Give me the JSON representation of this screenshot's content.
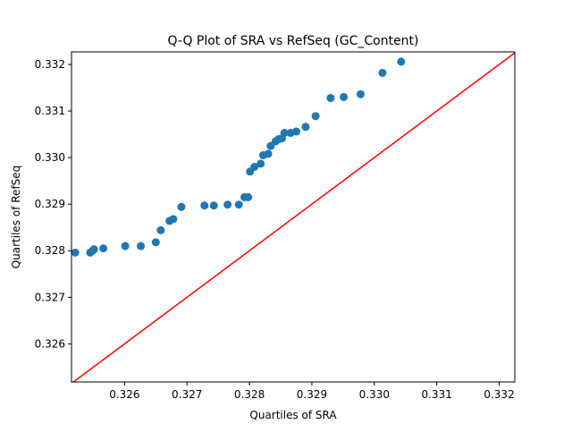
{
  "chart_data": {
    "type": "scatter",
    "title": "Q-Q Plot of SRA vs RefSeq (GC_Content)",
    "xlabel": "Quartiles of SRA",
    "ylabel": "Quartiles of RefSeq",
    "xlim": [
      0.32515,
      0.33225
    ],
    "ylim": [
      0.32518,
      0.33227
    ],
    "xticks": [
      {
        "value": 0.326,
        "label": "0.326"
      },
      {
        "value": 0.327,
        "label": "0.327"
      },
      {
        "value": 0.328,
        "label": "0.328"
      },
      {
        "value": 0.329,
        "label": "0.329"
      },
      {
        "value": 0.33,
        "label": "0.330"
      },
      {
        "value": 0.331,
        "label": "0.331"
      },
      {
        "value": 0.332,
        "label": "0.332"
      }
    ],
    "yticks": [
      {
        "value": 0.326,
        "label": "0.326"
      },
      {
        "value": 0.327,
        "label": "0.327"
      },
      {
        "value": 0.328,
        "label": "0.328"
      },
      {
        "value": 0.329,
        "label": "0.329"
      },
      {
        "value": 0.33,
        "label": "0.330"
      },
      {
        "value": 0.331,
        "label": "0.331"
      },
      {
        "value": 0.332,
        "label": "0.332"
      }
    ],
    "grid": false,
    "marker_color": "#1f77b4",
    "reference_line": {
      "color": "#ff0000",
      "from": [
        0.32515,
        0.32515
      ],
      "to": [
        0.33227,
        0.33227
      ]
    },
    "points": [
      {
        "x": 0.32521,
        "y": 0.32796
      },
      {
        "x": 0.32545,
        "y": 0.32796
      },
      {
        "x": 0.32549,
        "y": 0.328
      },
      {
        "x": 0.32551,
        "y": 0.32803
      },
      {
        "x": 0.32566,
        "y": 0.32805
      },
      {
        "x": 0.32601,
        "y": 0.3281
      },
      {
        "x": 0.32626,
        "y": 0.3281
      },
      {
        "x": 0.3265,
        "y": 0.32818
      },
      {
        "x": 0.32658,
        "y": 0.32844
      },
      {
        "x": 0.32672,
        "y": 0.32864
      },
      {
        "x": 0.32678,
        "y": 0.32868
      },
      {
        "x": 0.32691,
        "y": 0.32894
      },
      {
        "x": 0.32728,
        "y": 0.32897
      },
      {
        "x": 0.32743,
        "y": 0.32897
      },
      {
        "x": 0.32765,
        "y": 0.32899
      },
      {
        "x": 0.32783,
        "y": 0.32899
      },
      {
        "x": 0.32792,
        "y": 0.32915
      },
      {
        "x": 0.32798,
        "y": 0.32915
      },
      {
        "x": 0.32801,
        "y": 0.3297
      },
      {
        "x": 0.32808,
        "y": 0.3298
      },
      {
        "x": 0.32818,
        "y": 0.32987
      },
      {
        "x": 0.32822,
        "y": 0.33005
      },
      {
        "x": 0.3283,
        "y": 0.33008
      },
      {
        "x": 0.32834,
        "y": 0.33025
      },
      {
        "x": 0.32842,
        "y": 0.33035
      },
      {
        "x": 0.32847,
        "y": 0.3304
      },
      {
        "x": 0.32852,
        "y": 0.33041
      },
      {
        "x": 0.32856,
        "y": 0.33053
      },
      {
        "x": 0.32866,
        "y": 0.33053
      },
      {
        "x": 0.32875,
        "y": 0.33056
      },
      {
        "x": 0.3289,
        "y": 0.33066
      },
      {
        "x": 0.32906,
        "y": 0.33089
      },
      {
        "x": 0.3293,
        "y": 0.33128
      },
      {
        "x": 0.32951,
        "y": 0.3313
      },
      {
        "x": 0.32978,
        "y": 0.33136
      },
      {
        "x": 0.33013,
        "y": 0.33182
      },
      {
        "x": 0.33043,
        "y": 0.33206
      }
    ]
  }
}
